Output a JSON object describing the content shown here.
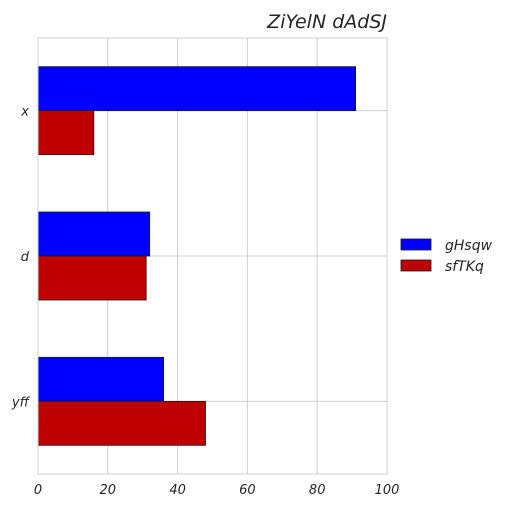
{
  "chart_data": {
    "type": "bar",
    "orientation": "horizontal",
    "title": "ZiYelN dAdSJ",
    "xlabel": "",
    "ylabel": "",
    "categories": [
      "x",
      "d",
      "yff"
    ],
    "xlim": [
      0,
      100
    ],
    "xticks": [
      0,
      20,
      40,
      60,
      80,
      100
    ],
    "grid": true,
    "legend_position": "right",
    "series": [
      {
        "name": "gHsqw",
        "color": "#0000ff",
        "values": [
          91,
          32,
          36
        ]
      },
      {
        "name": "sfTKq",
        "color": "#bf0000",
        "values": [
          16,
          31,
          48
        ]
      }
    ]
  }
}
